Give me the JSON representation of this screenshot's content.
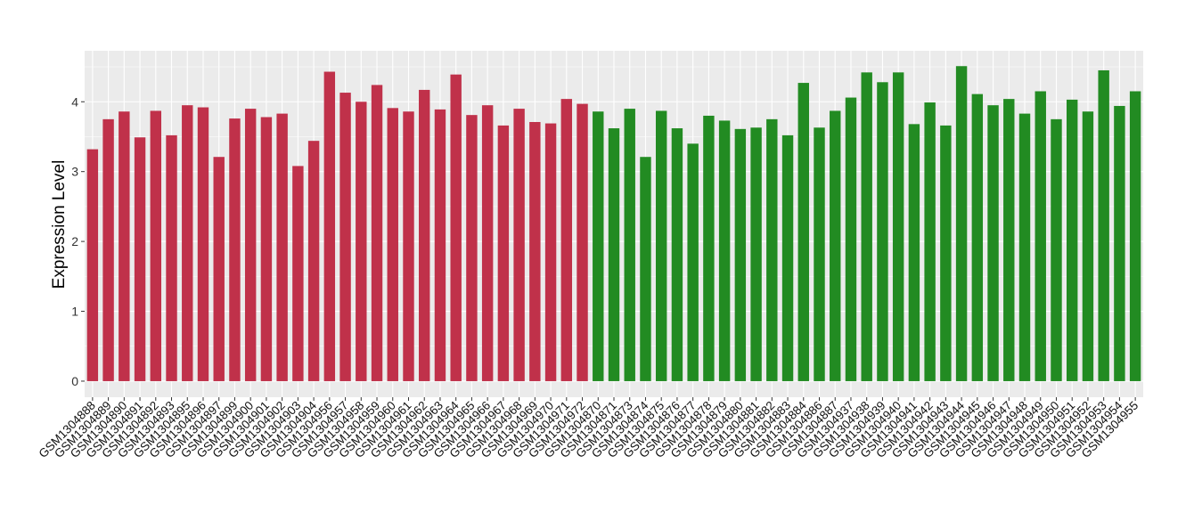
{
  "chart_data": {
    "type": "bar",
    "title": "",
    "xlabel": "",
    "ylabel": "Expression Level",
    "ylim": [
      -0.23,
      4.73
    ],
    "yticks": [
      0,
      1,
      2,
      3,
      4
    ],
    "grid": true,
    "legend": "none",
    "colors": {
      "group1": "#C0314A",
      "group2": "#228B22",
      "panel": "#EBEBEB",
      "grid": "#FFFFFF"
    },
    "series": [
      {
        "color_key": "group1",
        "categories": [
          "GSM1304888",
          "GSM1304889",
          "GSM1304890",
          "GSM1304891",
          "GSM1304892",
          "GSM1304893",
          "GSM1304895",
          "GSM1304896",
          "GSM1304897",
          "GSM1304899",
          "GSM1304900",
          "GSM1304901",
          "GSM1304902",
          "GSM1304903",
          "GSM1304904",
          "GSM1304956",
          "GSM1304957",
          "GSM1304958",
          "GSM1304959",
          "GSM1304960",
          "GSM1304961",
          "GSM1304962",
          "GSM1304963",
          "GSM1304964",
          "GSM1304965",
          "GSM1304966",
          "GSM1304967",
          "GSM1304968",
          "GSM1304969",
          "GSM1304970",
          "GSM1304971",
          "GSM1304972"
        ],
        "values": [
          3.32,
          3.75,
          3.86,
          3.49,
          3.87,
          3.52,
          3.95,
          3.92,
          3.21,
          3.76,
          3.9,
          3.78,
          3.83,
          3.08,
          3.44,
          4.43,
          4.13,
          4.0,
          4.24,
          3.91,
          3.86,
          4.17,
          3.89,
          4.39,
          3.81,
          3.95,
          3.66,
          3.9,
          3.71,
          3.69,
          4.04,
          3.97
        ]
      },
      {
        "color_key": "group2",
        "categories": [
          "GSM1304870",
          "GSM1304871",
          "GSM1304873",
          "GSM1304874",
          "GSM1304875",
          "GSM1304876",
          "GSM1304877",
          "GSM1304878",
          "GSM1304879",
          "GSM1304880",
          "GSM1304881",
          "GSM1304882",
          "GSM1304883",
          "GSM1304884",
          "GSM1304886",
          "GSM1304887",
          "GSM1304937",
          "GSM1304938",
          "GSM1304939",
          "GSM1304940",
          "GSM1304941",
          "GSM1304942",
          "GSM1304943",
          "GSM1304944",
          "GSM1304945",
          "GSM1304946",
          "GSM1304947",
          "GSM1304948",
          "GSM1304949",
          "GSM1304950",
          "GSM1304951",
          "GSM1304952",
          "GSM1304953",
          "GSM1304954",
          "GSM1304955"
        ],
        "values": [
          3.86,
          3.62,
          3.9,
          3.21,
          3.87,
          3.62,
          3.4,
          3.8,
          3.73,
          3.61,
          3.63,
          3.75,
          3.52,
          4.27,
          3.63,
          3.87,
          4.06,
          4.42,
          4.28,
          4.42,
          3.68,
          3.99,
          3.66,
          4.51,
          4.11,
          3.95,
          4.04,
          3.83,
          4.15,
          3.75,
          4.03,
          3.86,
          4.45,
          3.94,
          4.15
        ]
      }
    ]
  }
}
